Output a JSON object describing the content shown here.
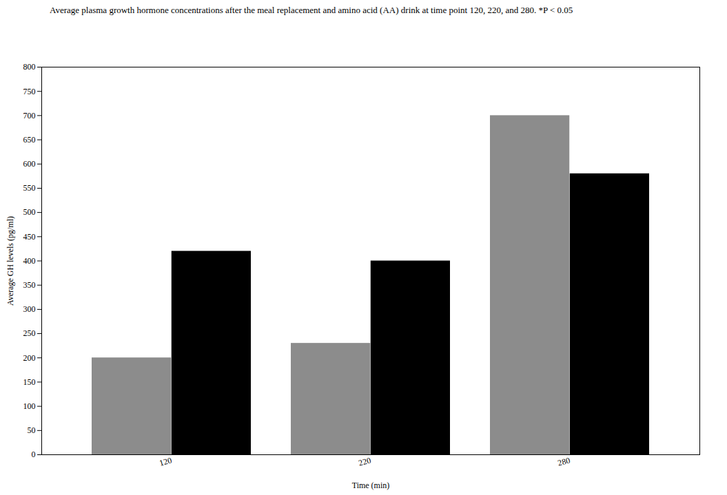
{
  "chart_data": {
    "type": "bar",
    "title": "Average plasma growth hormone concentrations after the meal replacement and amino acid (AA) drink at time point 120, 220, and 280. *P < 0.05",
    "x_label": "Time (min)",
    "y_label": "Average GH levels (pg/ml)",
    "categories": [
      "120",
      "220",
      "280"
    ],
    "series": [
      {
        "color": "#8c8c8c",
        "values": [
          200,
          230,
          700
        ]
      },
      {
        "color": "#000000",
        "values": [
          420,
          400,
          580
        ]
      }
    ],
    "ylim": [
      0,
      800
    ],
    "yticks": [
      0,
      50,
      100,
      150,
      200,
      250,
      300,
      350,
      400,
      450,
      500,
      550,
      600,
      650,
      700,
      750,
      800
    ],
    "grid": false
  }
}
